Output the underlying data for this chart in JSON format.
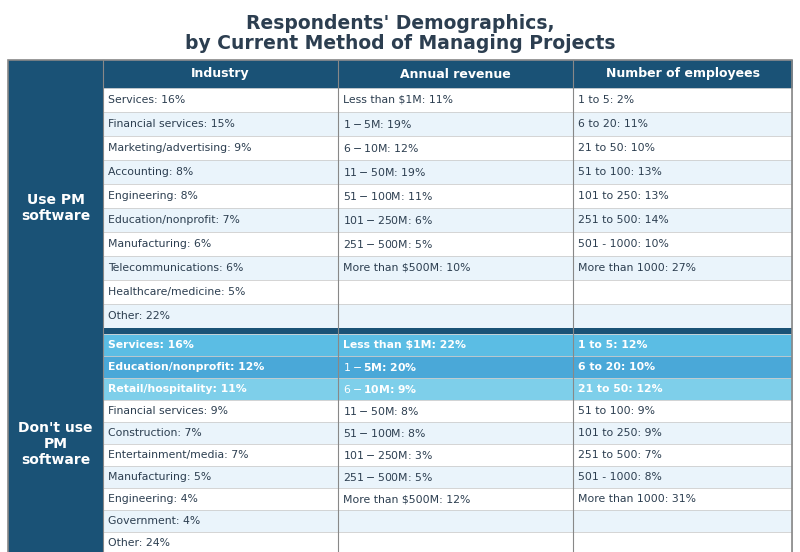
{
  "title_line1": "Respondents' Demographics,",
  "title_line2": "by Current Method of Managing Projects",
  "header_bg": "#1a5276",
  "header_text_color": "#ffffff",
  "header_cols": [
    "Industry",
    "Annual revenue",
    "Number of employees"
  ],
  "section1_label": "Use PM\nsoftware",
  "section2_label": "Don't use\nPM\nsoftware",
  "section_bg": "#1a5276",
  "section_text_color": "#ffffff",
  "highlight_row_colors": [
    "#5bbde4",
    "#4aa8d8",
    "#7ecfea"
  ],
  "highlight_text_color": "#ffffff",
  "normal_row_bg_odd": "#eaf4fb",
  "normal_row_bg_even": "#ffffff",
  "normal_text_color": "#2c3e50",
  "section1_data_industry": [
    "Services: 16%",
    "Financial services: 15%",
    "Marketing/advertising: 9%",
    "Accounting: 8%",
    "Engineering: 8%",
    "Education/nonprofit: 7%",
    "Manufacturing: 6%",
    "Telecommunications: 6%",
    "Healthcare/medicine: 5%",
    "Other: 22%"
  ],
  "section1_data_revenue": [
    "Less than $1M: 11%",
    "$1 - $5M: 19%",
    "$6 - $10M: 12%",
    "$11 - $50M: 19%",
    "$51 - $100M: 11%",
    "$101 - $250M: 6%",
    "$251 - $500M: 5%",
    "More than $500M: 10%",
    "",
    ""
  ],
  "section1_data_employees": [
    "1 to 5: 2%",
    "6 to 20: 11%",
    "21 to 50: 10%",
    "51 to 100: 13%",
    "101 to 250: 13%",
    "251 to 500: 14%",
    "501 - 1000: 10%",
    "More than 1000: 27%",
    "",
    ""
  ],
  "section2_data_industry": [
    "Services: 16%",
    "Education/nonprofit: 12%",
    "Retail/hospitality: 11%",
    "Financial services: 9%",
    "Construction: 7%",
    "Entertainment/media: 7%",
    "Manufacturing: 5%",
    "Engineering: 4%",
    "Government: 4%",
    "Other: 24%"
  ],
  "section2_data_revenue": [
    "Less than $1M: 22%",
    "$1 - $5M: 20%",
    "$6 - $10M: 9%",
    "$11 - $50M: 8%",
    "$51 - $100M: 8%",
    "$101 - $250M: 3%",
    "$251 - $500M: 5%",
    "More than $500M: 12%",
    "",
    ""
  ],
  "section2_data_employees": [
    "1 to 5: 12%",
    "6 to 20: 10%",
    "21 to 50: 12%",
    "51 to 100: 9%",
    "101 to 250: 9%",
    "251 to 500: 7%",
    "501 - 1000: 8%",
    "More than 1000: 31%",
    "",
    ""
  ],
  "border_color": "#888888",
  "divider_color": "#1a5276",
  "cell_border_color": "#cccccc"
}
